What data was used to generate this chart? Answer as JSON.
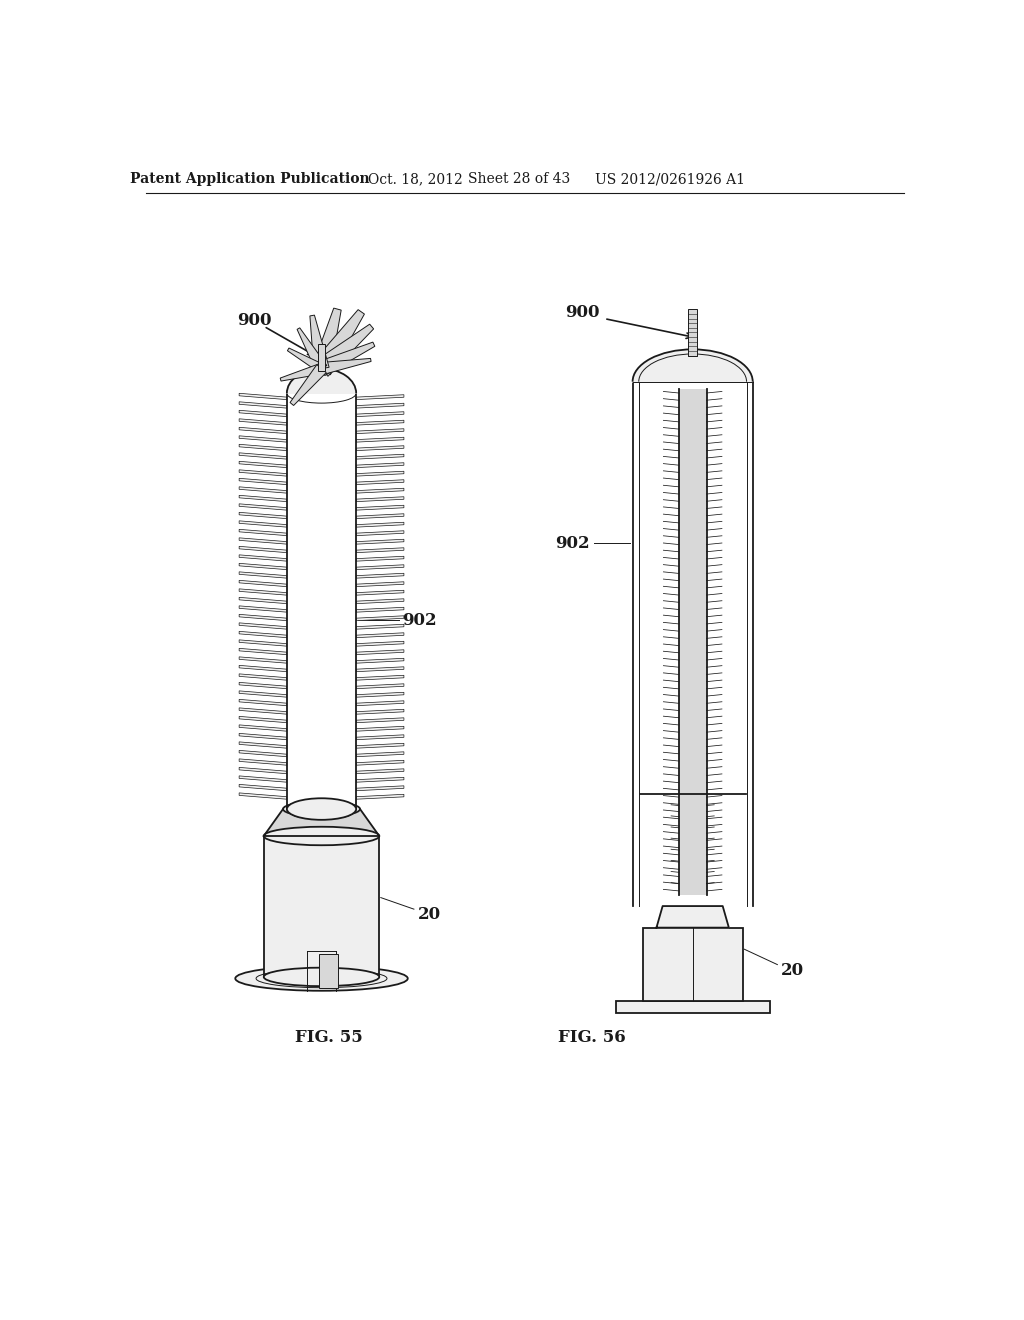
{
  "bg_color": "#ffffff",
  "header_text": "Patent Application Publication",
  "header_date": "Oct. 18, 2012",
  "header_sheet": "Sheet 28 of 43",
  "header_patent": "US 2012/0261926 A1",
  "fig55_label": "FIG. 55",
  "fig56_label": "FIG. 56",
  "label_900": "900",
  "label_902": "902",
  "label_20": "20",
  "line_color": "#1a1a1a",
  "fill_white": "#ffffff",
  "fill_light": "#efefef",
  "fill_mid": "#d8d8d8",
  "fill_dark": "#b0b0b0"
}
